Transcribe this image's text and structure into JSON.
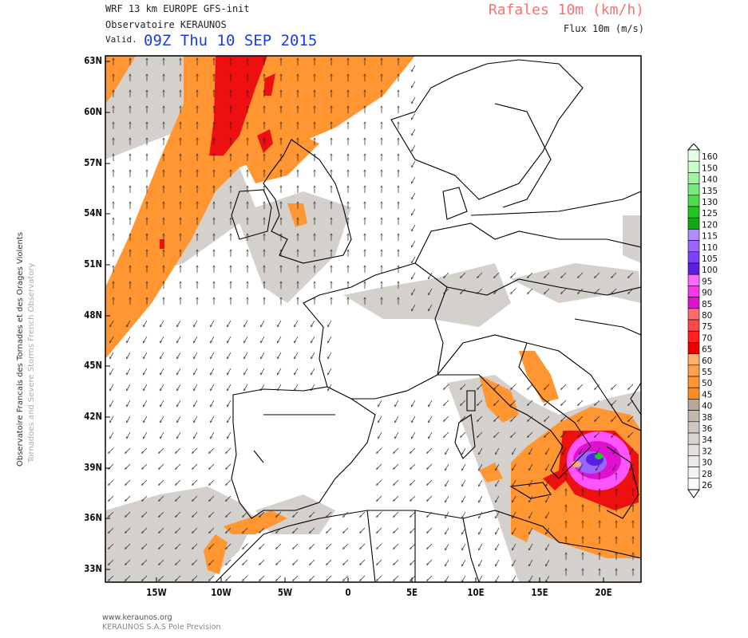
{
  "header": {
    "line1": "WRF 13 km EUROPE  GFS-init",
    "line2": "Observatoire KERAUNOS",
    "valid_prefix": "Valid.",
    "valid_time": "09Z Thu 10 SEP 2015",
    "field_title": "Rafales 10m (km/h)",
    "vector_title": "Flux 10m (m/s)"
  },
  "sidebar": {
    "text1": "Observatoire Francais des Tornades et des Orages Violents",
    "text2": "Tornadoes and Severe Storms French Observatory"
  },
  "footer": {
    "url": "www.keraunos.org",
    "company": "KERAUNOS S.A.S Pole Prevision"
  },
  "map": {
    "lat_labels": [
      "63N",
      "60N",
      "57N",
      "54N",
      "51N",
      "48N",
      "45N",
      "42N",
      "39N",
      "36N",
      "33N"
    ],
    "lon_labels": [
      "15W",
      "10W",
      "5W",
      "0",
      "5E",
      "10E",
      "15E",
      "20E"
    ]
  },
  "legend": {
    "labels": [
      "160",
      "150",
      "140",
      "135",
      "130",
      "125",
      "120",
      "115",
      "110",
      "105",
      "100",
      "95",
      "90",
      "85",
      "80",
      "75",
      "70",
      "65",
      "60",
      "55",
      "50",
      "45",
      "40",
      "38",
      "36",
      "34",
      "32",
      "30",
      "28",
      "26"
    ],
    "colors": [
      "#e6ffe6",
      "#c8ffc8",
      "#a0f5a0",
      "#78ec78",
      "#4cdc4c",
      "#22c822",
      "#12a812",
      "#b28cff",
      "#9966ff",
      "#7a44ff",
      "#5a1ee6",
      "#ff66ff",
      "#ff33ee",
      "#e010d0",
      "#ff6a6a",
      "#ff4848",
      "#ff2020",
      "#ee0000",
      "#ffb070",
      "#ffa050",
      "#ff9632",
      "#ff8c1e",
      "#b8a89a",
      "#c4b8ac",
      "#d0c8c0",
      "#dad4ce",
      "#e4e0dc",
      "#eceae8",
      "#f3f2f1",
      "#fafafa"
    ]
  }
}
